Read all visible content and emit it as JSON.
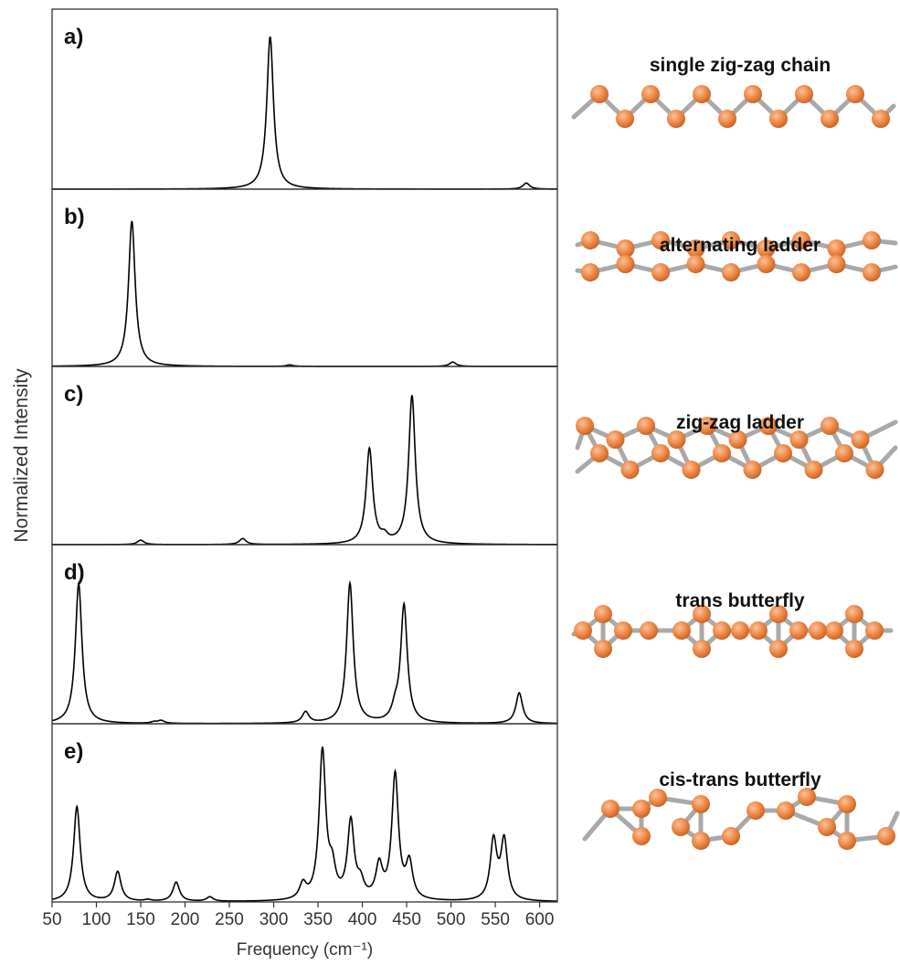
{
  "chart_data": [
    {
      "type": "spectrum",
      "label": "a)",
      "title": "single zig-zag chain",
      "x": [
        296,
        585
      ],
      "values": [
        1.0,
        0.04
      ],
      "xlim": [
        50,
        620
      ],
      "ylim": [
        0,
        1.18
      ]
    },
    {
      "type": "spectrum",
      "label": "b)",
      "title": "alternating ladder",
      "x": [
        140,
        318,
        502
      ],
      "values": [
        1.0,
        0.01,
        0.03
      ],
      "xlim": [
        50,
        620
      ],
      "ylim": [
        0,
        1.22
      ]
    },
    {
      "type": "spectrum",
      "label": "c)",
      "title": "zig-zag ladder",
      "x": [
        150,
        265,
        408,
        425,
        456
      ],
      "values": [
        0.03,
        0.04,
        0.64,
        0.04,
        1.0
      ],
      "xlim": [
        50,
        620
      ],
      "ylim": [
        0,
        1.2
      ]
    },
    {
      "type": "spectrum",
      "label": "d)",
      "title": "trans butterfly",
      "x": [
        80,
        165,
        173,
        336,
        386,
        437,
        447,
        577
      ],
      "values": [
        1.0,
        0.01,
        0.02,
        0.08,
        1.0,
        0.08,
        0.84,
        0.22
      ],
      "xlim": [
        50,
        620
      ],
      "ylim": [
        0,
        1.28
      ]
    },
    {
      "type": "spectrum",
      "label": "e)",
      "title": "cis-trans butterfly",
      "x": [
        78,
        124,
        158,
        190,
        228,
        333,
        355,
        366,
        387,
        398,
        419,
        437,
        453,
        548,
        560
      ],
      "values": [
        0.64,
        0.2,
        0.01,
        0.13,
        0.03,
        0.1,
        1.0,
        0.18,
        0.52,
        0.1,
        0.22,
        0.84,
        0.24,
        0.4,
        0.4
      ],
      "xlim": [
        50,
        620
      ],
      "ylim": [
        0,
        1.2
      ],
      "xticks": [
        50,
        100,
        150,
        200,
        250,
        300,
        350,
        400,
        450,
        500,
        550,
        600
      ],
      "xlabel": "Frequency (cm⁻¹)",
      "ylabel": "Normalized Intensity"
    }
  ]
}
